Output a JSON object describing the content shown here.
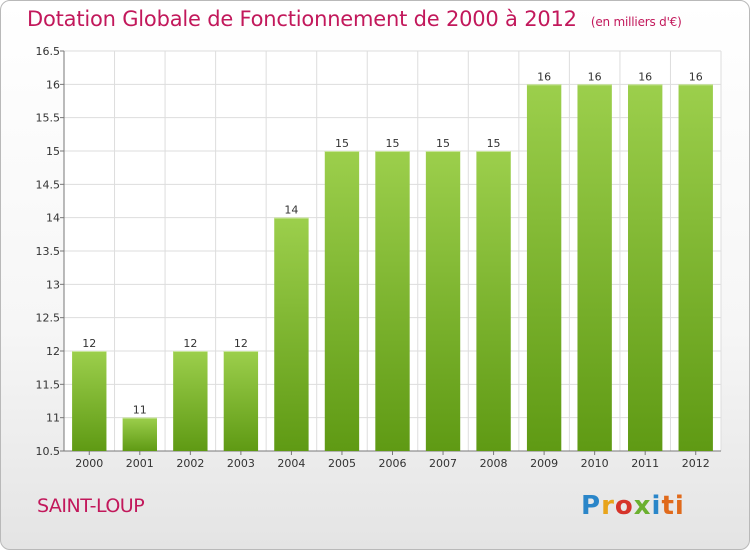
{
  "header": {
    "title": "Dotation Globale de Fonctionnement de 2000 à 2012",
    "unit": "(en milliers d'€)"
  },
  "footer": {
    "commune": "SAINT-LOUP",
    "logo": [
      "P",
      "r",
      "o",
      "x",
      "i",
      "ti"
    ]
  },
  "colors": {
    "title": "#c2185b",
    "bar_light": "#9ccf4c",
    "bar_dark": "#5f9a14"
  },
  "chart_data": {
    "type": "bar",
    "title": "Dotation Globale de Fonctionnement de 2000 à 2012",
    "xlabel": "",
    "ylabel": "",
    "ylim": [
      10.5,
      16.5
    ],
    "yticks": [
      10.5,
      11,
      11.5,
      12,
      12.5,
      13,
      13.5,
      14,
      14.5,
      15,
      15.5,
      16,
      16.5
    ],
    "ytick_labels": [
      "10.5",
      "11",
      "11.5",
      "12",
      "12.5",
      "13",
      "13.5",
      "14",
      "14.5",
      "15",
      "15.5",
      "16",
      "16.5"
    ],
    "grid": true,
    "categories": [
      "2000",
      "2001",
      "2002",
      "2003",
      "2004",
      "2005",
      "2006",
      "2007",
      "2008",
      "2009",
      "2010",
      "2011",
      "2012"
    ],
    "values": [
      12,
      11,
      12,
      12,
      14,
      15,
      15,
      15,
      15,
      16,
      16,
      16,
      16
    ],
    "value_labels": [
      "12",
      "11",
      "12",
      "12",
      "14",
      "15",
      "15",
      "15",
      "15",
      "16",
      "16",
      "16",
      "16"
    ]
  }
}
